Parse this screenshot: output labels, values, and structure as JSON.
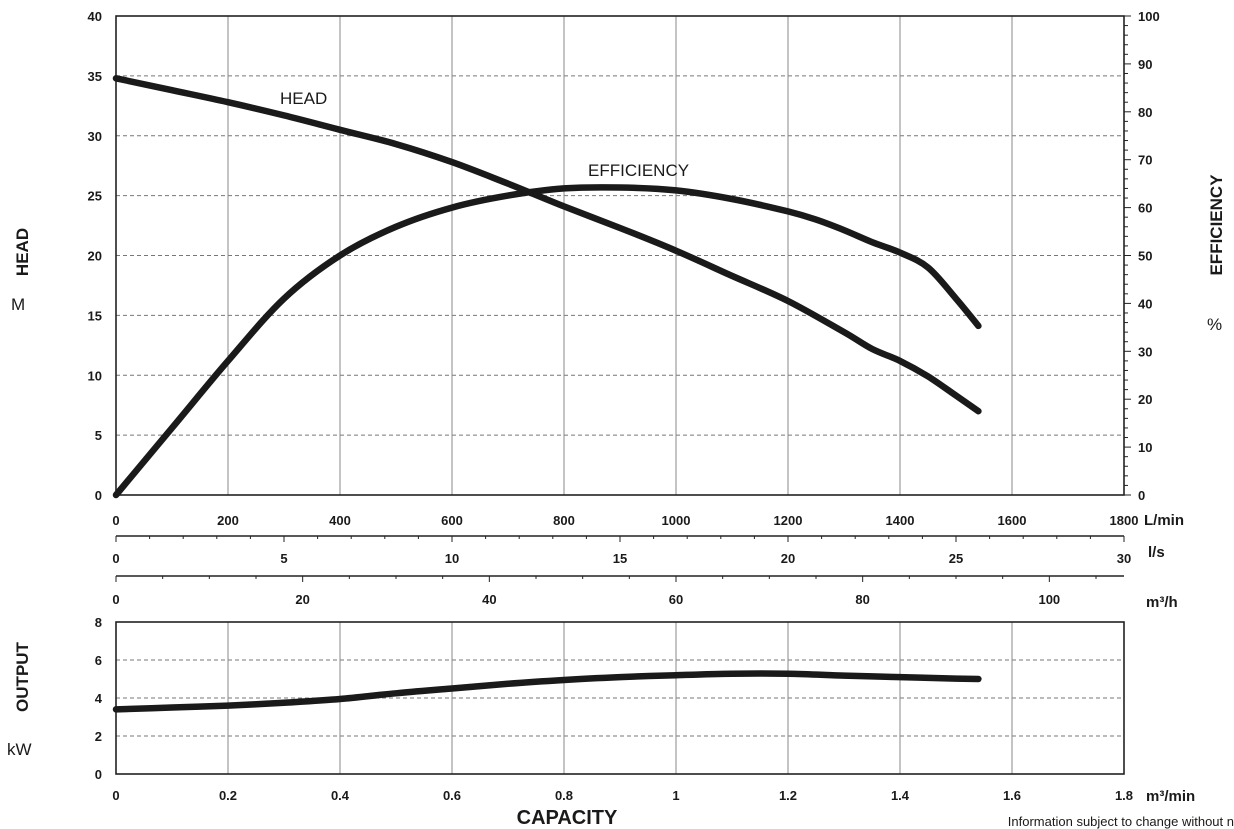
{
  "chart_data": [
    {
      "type": "line",
      "title": "",
      "x_unit": "L/min",
      "x_ticks": [
        0,
        200,
        400,
        600,
        800,
        1000,
        1200,
        1400,
        1600,
        1800
      ],
      "xlim": [
        0,
        1800
      ],
      "x_secondary": [
        {
          "unit": "l/s",
          "ticks": [
            0,
            5,
            10,
            15,
            20,
            25,
            30
          ],
          "lim": [
            0,
            30
          ]
        },
        {
          "unit": "m³/h",
          "ticks": [
            0,
            20,
            40,
            60,
            80,
            100
          ],
          "lim": [
            0,
            108
          ]
        }
      ],
      "y_left": {
        "label": "HEAD",
        "unit": "M",
        "ticks": [
          0,
          5,
          10,
          15,
          20,
          25,
          30,
          35,
          40
        ],
        "ylim": [
          0,
          40
        ]
      },
      "y_right": {
        "label": "EFFICIENCY",
        "unit": "%",
        "ticks": [
          0,
          10,
          20,
          30,
          40,
          50,
          60,
          70,
          80,
          90,
          100
        ],
        "ylim": [
          0,
          100
        ]
      },
      "grid": true,
      "series": [
        {
          "name": "HEAD",
          "axis": "left",
          "x": [
            0,
            100,
            200,
            300,
            400,
            500,
            600,
            700,
            800,
            900,
            1000,
            1100,
            1200,
            1300,
            1350,
            1400,
            1450,
            1500,
            1540
          ],
          "y": [
            34.8,
            33.8,
            32.8,
            31.7,
            30.5,
            29.3,
            27.8,
            26.0,
            24.1,
            22.3,
            20.4,
            18.3,
            16.2,
            13.6,
            12.2,
            11.2,
            9.9,
            8.3,
            7.0
          ]
        },
        {
          "name": "EFFICIENCY",
          "axis": "right",
          "x": [
            0,
            100,
            200,
            300,
            400,
            500,
            600,
            700,
            800,
            900,
            1000,
            1100,
            1200,
            1250,
            1300,
            1350,
            1400,
            1450,
            1500,
            1540
          ],
          "y": [
            0,
            14,
            28,
            41,
            50,
            56,
            60,
            62.5,
            64,
            64.2,
            63.6,
            61.8,
            59.2,
            57.5,
            55.3,
            52.8,
            50.6,
            47.5,
            41,
            35.3
          ]
        }
      ],
      "annotations": [
        "HEAD",
        "EFFICIENCY"
      ]
    },
    {
      "type": "line",
      "title": "",
      "xlabel": "CAPACITY",
      "x_unit": "m³/min",
      "x_ticks": [
        "0",
        "0.2",
        "0.4",
        "0.6",
        "0.8",
        "1",
        "1.2",
        "1.4",
        "1.6",
        "1.8"
      ],
      "xlim": [
        0,
        1.8
      ],
      "y_left": {
        "label": "OUTPUT",
        "unit": "kW",
        "ticks": [
          0,
          2,
          4,
          6,
          8
        ],
        "ylim": [
          0,
          8
        ]
      },
      "grid": true,
      "series": [
        {
          "name": "OUTPUT",
          "x": [
            0,
            0.1,
            0.2,
            0.3,
            0.4,
            0.5,
            0.6,
            0.7,
            0.8,
            0.9,
            1.0,
            1.1,
            1.2,
            1.3,
            1.4,
            1.5,
            1.54
          ],
          "y": [
            3.4,
            3.5,
            3.6,
            3.75,
            3.95,
            4.25,
            4.5,
            4.75,
            4.95,
            5.1,
            5.2,
            5.28,
            5.28,
            5.18,
            5.1,
            5.02,
            5.0
          ]
        }
      ]
    }
  ],
  "footer": {
    "note": "Information subject to change without n"
  }
}
